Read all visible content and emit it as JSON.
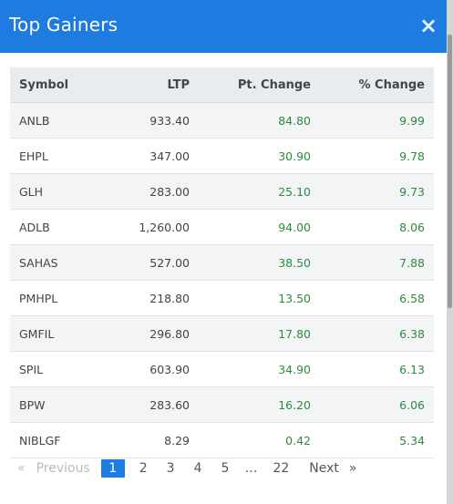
{
  "dialog": {
    "title": "Top Gainers",
    "close": "×"
  },
  "table": {
    "headers": [
      "Symbol",
      "LTP",
      "Pt. Change",
      "% Change"
    ],
    "rows": [
      [
        "ANLB",
        "933.40",
        "84.80",
        "9.99"
      ],
      [
        "EHPL",
        "347.00",
        "30.90",
        "9.78"
      ],
      [
        "GLH",
        "283.00",
        "25.10",
        "9.73"
      ],
      [
        "ADLB",
        "1,260.00",
        "94.00",
        "8.06"
      ],
      [
        "SAHAS",
        "527.00",
        "38.50",
        "7.88"
      ],
      [
        "PMHPL",
        "218.80",
        "13.50",
        "6.58"
      ],
      [
        "GMFIL",
        "296.80",
        "17.80",
        "6.38"
      ],
      [
        "SPIL",
        "603.90",
        "34.90",
        "6.13"
      ],
      [
        "BPW",
        "283.60",
        "16.20",
        "6.06"
      ],
      [
        "NIBLGF",
        "8.29",
        "0.42",
        "5.34"
      ]
    ]
  },
  "pagination": {
    "prev_arrow": "«",
    "prev_label": "Previous",
    "pages": [
      "1",
      "2",
      "3",
      "4",
      "5"
    ],
    "ellipsis": "…",
    "last_page": "22",
    "next_label": "Next",
    "next_arrow": "»",
    "active": "1"
  },
  "colors": {
    "header_bg": "#1e7be0",
    "positive": "#2e8b3e",
    "row_alt": "#f3f4f6"
  }
}
